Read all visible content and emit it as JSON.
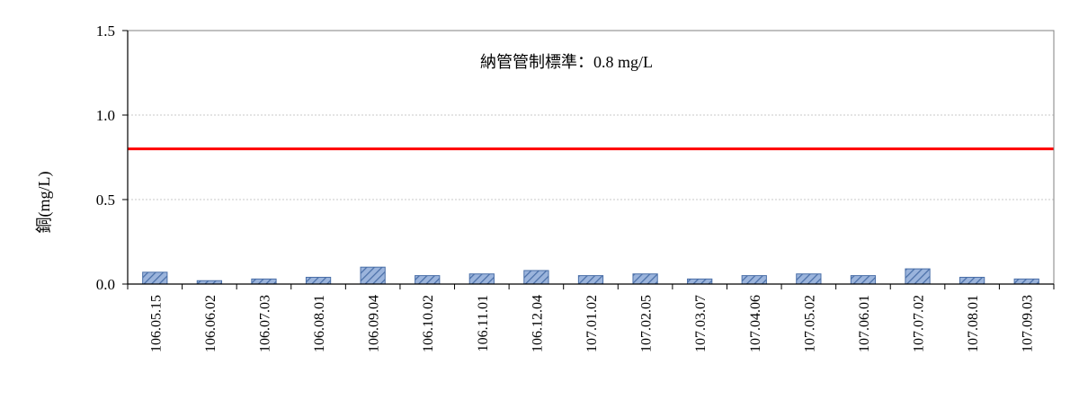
{
  "chart_data": {
    "type": "bar",
    "title": "",
    "ylabel": "銅(mg/L)",
    "xlabel": "",
    "ylim": [
      0,
      1.5
    ],
    "yticks": [
      "0.0",
      "0.5",
      "1.0",
      "1.5"
    ],
    "ytick_values": [
      0,
      0.5,
      1.0,
      1.5
    ],
    "grid": true,
    "categories": [
      "106.05.15",
      "106.06.02",
      "106.07.03",
      "106.08.01",
      "106.09.04",
      "106.10.02",
      "106.11.01",
      "106.12.04",
      "107.01.02",
      "107.02.05",
      "107.03.07",
      "107.04.06",
      "107.05.02",
      "107.06.01",
      "107.07.02",
      "107.08.01",
      "107.09.03"
    ],
    "values": [
      0.07,
      0.02,
      0.03,
      0.04,
      0.1,
      0.05,
      0.06,
      0.08,
      0.05,
      0.06,
      0.03,
      0.05,
      0.06,
      0.05,
      0.09,
      0.04,
      0.03
    ],
    "bar_fill": "#9bb4dc",
    "bar_hatch": "#4a6fa8",
    "reference_line": {
      "value": 0.8,
      "color": "#ff0000"
    },
    "annotation": "納管管制標準：0.8 mg/L"
  }
}
